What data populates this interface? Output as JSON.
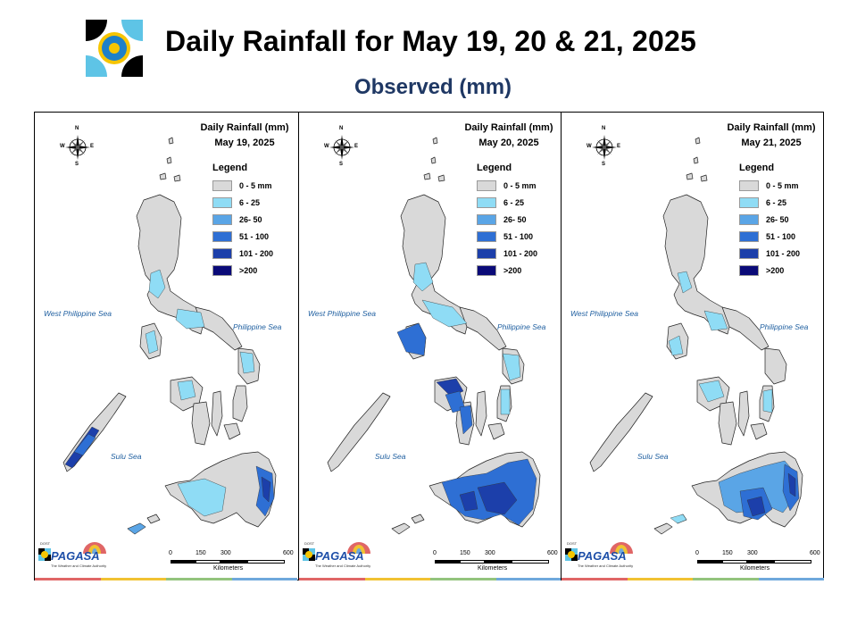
{
  "header": {
    "title": "Daily Rainfall for May 19, 20 & 21, 2025",
    "subtitle": "Observed (mm)"
  },
  "legend": {
    "title": "Legend",
    "items": [
      {
        "label": "0 - 5 mm",
        "color": "#d9d9d9"
      },
      {
        "label": "6 - 25",
        "color": "#8fdcf5"
      },
      {
        "label": "26- 50",
        "color": "#5aa5e6"
      },
      {
        "label": "51 - 100",
        "color": "#2e6fd4"
      },
      {
        "label": "101 - 200",
        "color": "#1c3faa"
      },
      {
        "label": ">200",
        "color": "#0a0a78"
      }
    ]
  },
  "panels": [
    {
      "title": "Daily Rainfall (mm)",
      "date": "May 19, 2025"
    },
    {
      "title": "Daily Rainfall (mm)",
      "date": "May 20, 2025"
    },
    {
      "title": "Daily Rainfall (mm)",
      "date": "May 21, 2025"
    }
  ],
  "map_labels": {
    "west_sea": "West Philippine Sea",
    "east_sea": "Philippine Sea",
    "south_sea": "Sulu Sea",
    "compass": {
      "n": "N",
      "s": "S",
      "e": "E",
      "w": "W"
    }
  },
  "scale": {
    "ticks": [
      "0",
      "150",
      "300",
      "600"
    ],
    "unit": "Kilometers"
  },
  "branding": {
    "agency_top": "DOST",
    "agency_name": "PAGASA",
    "agency_tagline": "The Weather and Climate Authority"
  },
  "bottom_bar_colors": [
    "#e06666",
    "#f1c232",
    "#93c47d",
    "#6fa8dc"
  ]
}
